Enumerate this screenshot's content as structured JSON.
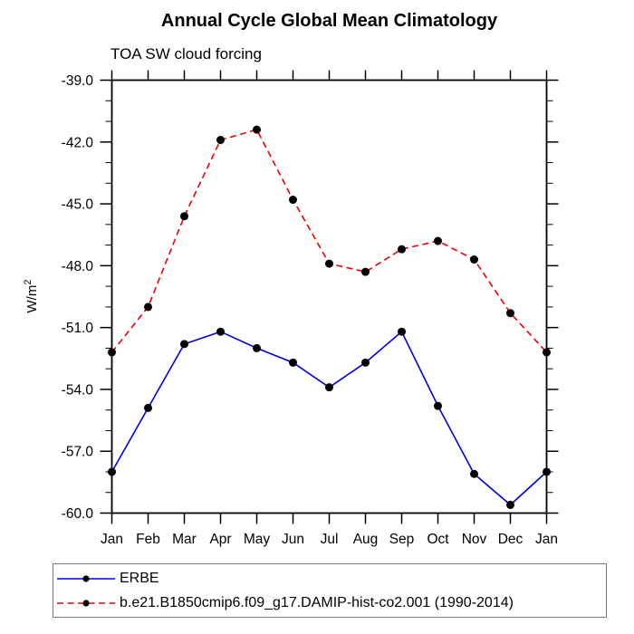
{
  "chart_data": {
    "type": "line",
    "title": "Annual Cycle Global Mean Climatology",
    "subtitle": "TOA SW cloud forcing",
    "ylabel": "W/m^2",
    "x": [
      "Jan",
      "Feb",
      "Mar",
      "Apr",
      "May",
      "Jun",
      "Jul",
      "Aug",
      "Sep",
      "Oct",
      "Nov",
      "Dec",
      "Jan"
    ],
    "series": [
      {
        "name": "ERBE",
        "color": "#0000dd",
        "line_style": "solid",
        "marker": "filled-circle",
        "marker_color": "#000000",
        "values": [
          -58.0,
          -54.9,
          -51.8,
          -51.2,
          -52.0,
          -52.7,
          -53.9,
          -52.7,
          -51.2,
          -54.8,
          -58.1,
          -59.6,
          -58.0
        ]
      },
      {
        "name": "b.e21.B1850cmip6.f09_g17.DAMIP-hist-co2.001 (1990-2014)",
        "color": "#ee0000",
        "line_style": "dashed",
        "marker": "filled-circle",
        "marker_color": "#000000",
        "values": [
          -52.2,
          -50.0,
          -45.6,
          -41.9,
          -41.4,
          -44.8,
          -47.9,
          -48.3,
          -47.2,
          -46.8,
          -47.7,
          -50.3,
          -52.2
        ]
      }
    ],
    "ylim": [
      -60,
      -39
    ],
    "yticks": {
      "major": [
        -39,
        -42,
        -45,
        -48,
        -51,
        -54,
        -57,
        -60
      ],
      "major_labels": [
        "-39.0",
        "-42.0",
        "-45.0",
        "-48.0",
        "-51.0",
        "-54.0",
        "-57.0",
        "-60.0"
      ],
      "minor_step": 1
    },
    "grid": false,
    "frame": "box-with-outward-ticks",
    "axis_color": "#000000",
    "legend_position": "below-plot-box",
    "legend_border_color": "#7a7a7a"
  }
}
